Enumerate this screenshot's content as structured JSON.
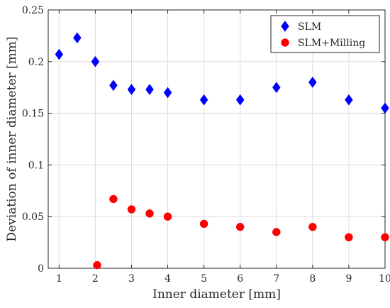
{
  "chart_data": {
    "type": "scatter",
    "title": "",
    "xlabel": "Inner diameter [mm]",
    "ylabel": "Deviation of inner diameter [mm]",
    "xlim": [
      0.7,
      10
    ],
    "ylim": [
      0,
      0.25
    ],
    "xticks": [
      1,
      2,
      3,
      4,
      5,
      6,
      7,
      8,
      9,
      10
    ],
    "yticks": [
      0,
      0.05,
      0.1,
      0.15,
      0.2,
      0.25
    ],
    "ytick_labels": [
      "0",
      "0.05",
      "0.1",
      "0.15",
      "0.2",
      "0.25"
    ],
    "grid": true,
    "legend_position": "top-right",
    "series": [
      {
        "name": "SLM",
        "marker": "diamond",
        "color": "#0000ff",
        "x": [
          1,
          1.5,
          2,
          2.5,
          3,
          3.5,
          4,
          5,
          6,
          7,
          8,
          9,
          10
        ],
        "y": [
          0.207,
          0.223,
          0.2,
          0.177,
          0.173,
          0.173,
          0.17,
          0.163,
          0.163,
          0.175,
          0.18,
          0.163,
          0.155
        ]
      },
      {
        "name": "SLM+Milling",
        "marker": "circle",
        "color": "#ff0000",
        "x": [
          2.05,
          2.5,
          3,
          3.5,
          4,
          5,
          6,
          7,
          8,
          9,
          10
        ],
        "y": [
          0.003,
          0.067,
          0.057,
          0.053,
          0.05,
          0.043,
          0.04,
          0.035,
          0.04,
          0.03,
          0.03
        ]
      }
    ]
  }
}
